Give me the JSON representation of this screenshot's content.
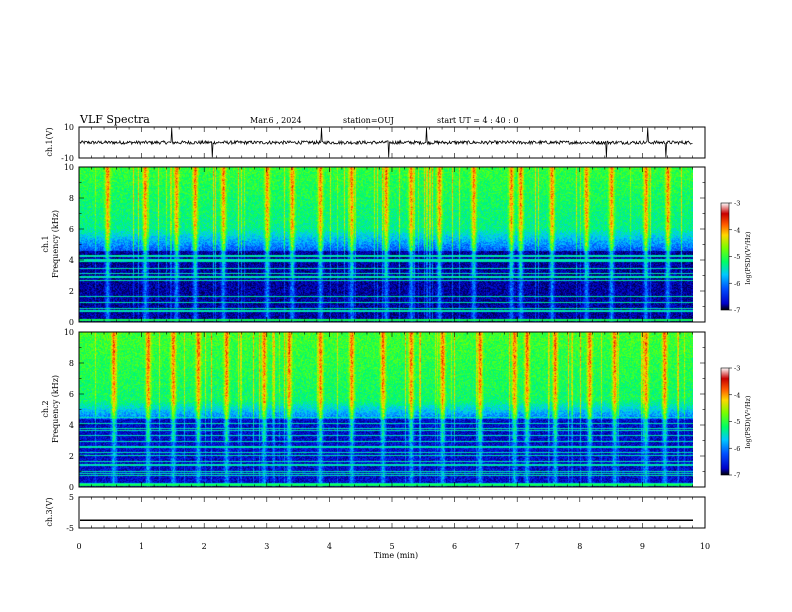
{
  "header": {
    "title": "VLF Spectra",
    "date": "Mar.6  , 2024",
    "station": "station=OUJ",
    "start_ut": "start  UT  =   4 : 40 : 0"
  },
  "chart_data": [
    {
      "type": "line",
      "panel": "ch1-waveform",
      "ylabel": "ch.1(V)",
      "yticks": [
        "10",
        "-10"
      ],
      "ylim": [
        -10,
        10
      ],
      "xlim": [
        0,
        10
      ],
      "baseline": 0,
      "spike_times_min": [
        1.48,
        2.13,
        3.87,
        4.95,
        5.55,
        8.42,
        9.08,
        9.38
      ]
    },
    {
      "type": "heatmap",
      "panel": "ch1-spectrogram",
      "ylabel": "ch.1\nFrequency (kHz)",
      "ylabel_lines": [
        "ch.1",
        "Frequency  (kHz)"
      ],
      "yticks": [
        "0",
        "2",
        "4",
        "6",
        "8",
        "10"
      ],
      "ylim": [
        0,
        10
      ],
      "xlim": [
        0,
        10
      ],
      "colorbar": {
        "label": "log(PSD)(V²/Hz)",
        "ticks": [
          "-3",
          "-4",
          "-5",
          "-6",
          "-7"
        ],
        "range": [
          -7,
          -3
        ]
      },
      "bright_bursts_min": [
        0.45,
        1.05,
        1.55,
        1.85,
        2.3,
        3.0,
        3.4,
        3.85,
        4.35,
        4.9,
        5.3,
        5.75,
        6.3,
        6.9,
        7.05,
        7.55,
        8.1,
        8.5,
        9.05,
        9.4
      ]
    },
    {
      "type": "heatmap",
      "panel": "ch2-spectrogram",
      "ylabel": "ch.2\nFrequency (kHz)",
      "ylabel_lines": [
        "ch.2",
        "Frequency  (kHz)"
      ],
      "yticks": [
        "0",
        "2",
        "4",
        "6",
        "8",
        "10"
      ],
      "ylim": [
        0,
        10
      ],
      "xlim": [
        0,
        10
      ],
      "colorbar": {
        "label": "log(PSD)(V²/Hz)",
        "ticks": [
          "-3",
          "-4",
          "-5",
          "-6",
          "-7"
        ],
        "range": [
          -7,
          -3
        ]
      },
      "bright_bursts_min": [
        0.55,
        1.1,
        1.5,
        1.9,
        2.35,
        2.95,
        3.35,
        3.85,
        4.35,
        4.85,
        5.3,
        5.8,
        6.4,
        6.95,
        7.15,
        7.6,
        8.15,
        8.55,
        9.05,
        9.35
      ]
    },
    {
      "type": "line",
      "panel": "ch3-waveform",
      "ylabel": "ch.3(V)",
      "yticks": [
        "5",
        "-5"
      ],
      "ylim": [
        -5,
        5
      ],
      "xlim": [
        0,
        10
      ],
      "level": -2.5
    }
  ],
  "xaxis": {
    "label": "Time  (min)",
    "ticks": [
      "0",
      "1",
      "2",
      "3",
      "4",
      "5",
      "6",
      "7",
      "8",
      "9",
      "10"
    ]
  },
  "colormap": [
    "#000000",
    "#0000c8",
    "#0050ff",
    "#00c8ff",
    "#00ff64",
    "#78ff00",
    "#ffd700",
    "#ff5a00",
    "#c80000",
    "#ffffff"
  ]
}
